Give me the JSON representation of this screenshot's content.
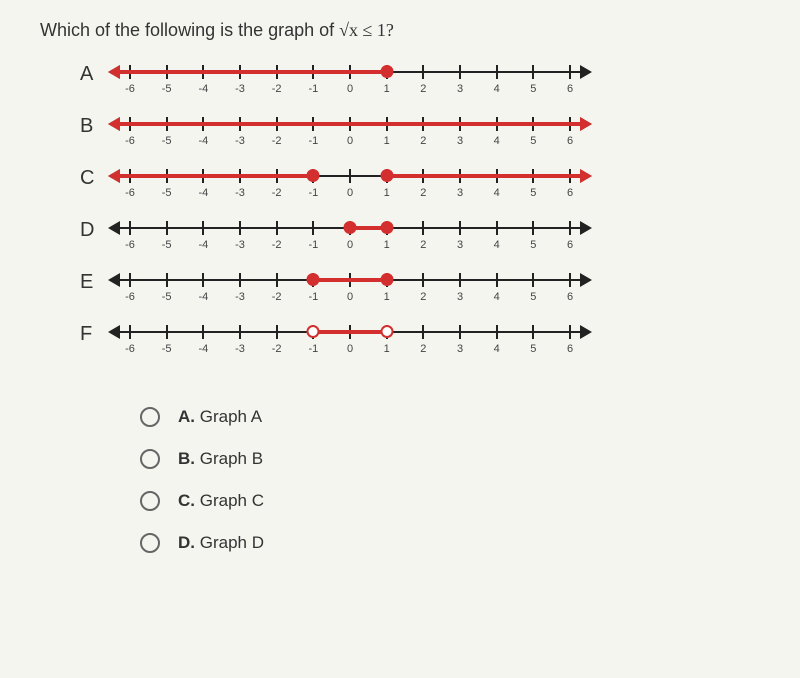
{
  "question_prefix": "Which of the following is the graph of ",
  "question_expr": "√x ≤ 1?",
  "axis": {
    "min": -6,
    "max": 6,
    "ticks": [
      -6,
      -5,
      -4,
      -3,
      -2,
      -1,
      0,
      1,
      2,
      3,
      4,
      5,
      6
    ],
    "line_color": "#222222",
    "highlight_color": "#d32f2f",
    "label_color": "#444444",
    "label_fontsize": 11
  },
  "graphs": [
    {
      "label": "A",
      "highlight": {
        "type": "ray_left",
        "from": 1,
        "closed_from": true
      }
    },
    {
      "label": "B",
      "highlight": {
        "type": "line_all"
      }
    },
    {
      "label": "C",
      "highlight": {
        "type": "two_rays",
        "left_to": -1,
        "left_closed": true,
        "right_from": 1,
        "right_closed": true
      }
    },
    {
      "label": "D",
      "highlight": {
        "type": "segment",
        "from": 0,
        "to": 1,
        "closed_from": true,
        "closed_to": true
      }
    },
    {
      "label": "E",
      "highlight": {
        "type": "segment",
        "from": -1,
        "to": 1,
        "closed_from": true,
        "closed_to": true
      }
    },
    {
      "label": "F",
      "highlight": {
        "type": "segment",
        "from": -1,
        "to": 1,
        "closed_from": false,
        "closed_to": false
      }
    }
  ],
  "answers": [
    {
      "letter": "A.",
      "text": "Graph A"
    },
    {
      "letter": "B.",
      "text": "Graph B"
    },
    {
      "letter": "C.",
      "text": "Graph C"
    },
    {
      "letter": "D.",
      "text": "Graph D"
    }
  ]
}
